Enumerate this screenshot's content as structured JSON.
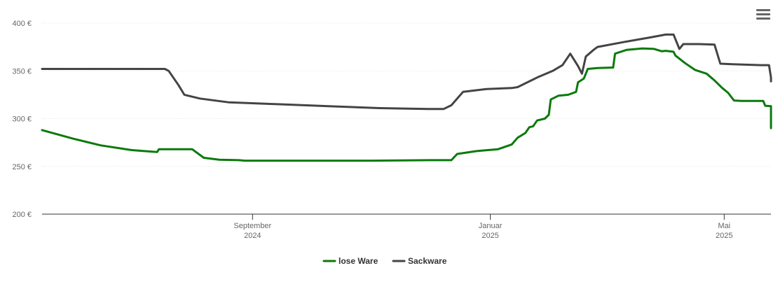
{
  "menu": {
    "icon": "hamburger-menu-icon"
  },
  "chart_data": {
    "type": "line",
    "title": "",
    "xlabel": "",
    "ylabel": "",
    "ylim": [
      200,
      400
    ],
    "yticks": [
      {
        "value": 200,
        "label": "200 €"
      },
      {
        "value": 250,
        "label": "250 €"
      },
      {
        "value": 300,
        "label": "300 €"
      },
      {
        "value": 350,
        "label": "350 €"
      },
      {
        "value": 400,
        "label": "400 €"
      }
    ],
    "xlim": [
      "2024-05-16",
      "2025-05-25"
    ],
    "xticks": [
      {
        "date": "2024-09-01",
        "month": "September",
        "year": "2024"
      },
      {
        "date": "2025-01-01",
        "month": "Januar",
        "year": "2025"
      },
      {
        "date": "2025-05-01",
        "month": "Mai",
        "year": "2025"
      }
    ],
    "grid": true,
    "legend": "bottom-center",
    "series": [
      {
        "name": "lose Ware",
        "color": "#0a7a0a",
        "points": [
          [
            "2024-05-16",
            288
          ],
          [
            "2024-06-01",
            279
          ],
          [
            "2024-06-15",
            272
          ],
          [
            "2024-07-01",
            267
          ],
          [
            "2024-07-14",
            265
          ],
          [
            "2024-07-15",
            268
          ],
          [
            "2024-08-01",
            268
          ],
          [
            "2024-08-07",
            259
          ],
          [
            "2024-08-15",
            257
          ],
          [
            "2024-08-25",
            256.5
          ],
          [
            "2024-08-28",
            256
          ],
          [
            "2024-10-01",
            256
          ],
          [
            "2024-11-01",
            256
          ],
          [
            "2024-12-01",
            256.5
          ],
          [
            "2024-12-12",
            256.5
          ],
          [
            "2024-12-15",
            263
          ],
          [
            "2024-12-25",
            266
          ],
          [
            "2025-01-05",
            268
          ],
          [
            "2025-01-12",
            273
          ],
          [
            "2025-01-15",
            280
          ],
          [
            "2025-01-19",
            285
          ],
          [
            "2025-01-21",
            291
          ],
          [
            "2025-01-23",
            292
          ],
          [
            "2025-01-25",
            298
          ],
          [
            "2025-01-29",
            300
          ],
          [
            "2025-01-31",
            304
          ],
          [
            "2025-02-01",
            320
          ],
          [
            "2025-02-05",
            324
          ],
          [
            "2025-02-10",
            325
          ],
          [
            "2025-02-14",
            328
          ],
          [
            "2025-02-15",
            338
          ],
          [
            "2025-02-18",
            342
          ],
          [
            "2025-02-20",
            352
          ],
          [
            "2025-02-25",
            353
          ],
          [
            "2025-03-05",
            353.5
          ],
          [
            "2025-03-06",
            368
          ],
          [
            "2025-03-12",
            372
          ],
          [
            "2025-03-20",
            373.5
          ],
          [
            "2025-03-26",
            373
          ],
          [
            "2025-03-30",
            370.5
          ],
          [
            "2025-04-01",
            371
          ],
          [
            "2025-04-05",
            370
          ],
          [
            "2025-04-06",
            366
          ],
          [
            "2025-04-11",
            358
          ],
          [
            "2025-04-16",
            351
          ],
          [
            "2025-04-22",
            347
          ],
          [
            "2025-04-26",
            340
          ],
          [
            "2025-04-30",
            332
          ],
          [
            "2025-05-03",
            327
          ],
          [
            "2025-05-06",
            319
          ],
          [
            "2025-05-10",
            318.5
          ],
          [
            "2025-05-21",
            318.5
          ],
          [
            "2025-05-22",
            313.5
          ],
          [
            "2025-05-29",
            313
          ],
          [
            "2025-06-01",
            294
          ],
          [
            "2025-06-15",
            290
          ]
        ]
      },
      {
        "name": "Sackware",
        "color": "#444444",
        "points": [
          [
            "2024-05-16",
            352
          ],
          [
            "2024-06-15",
            352
          ],
          [
            "2024-07-18",
            352
          ],
          [
            "2024-07-20",
            350
          ],
          [
            "2024-07-25",
            335
          ],
          [
            "2024-07-28",
            325
          ],
          [
            "2024-08-05",
            321
          ],
          [
            "2024-08-20",
            317
          ],
          [
            "2024-09-15",
            315
          ],
          [
            "2024-10-10",
            313
          ],
          [
            "2024-11-05",
            311
          ],
          [
            "2024-11-30",
            310
          ],
          [
            "2024-12-08",
            310
          ],
          [
            "2024-12-12",
            314
          ],
          [
            "2024-12-18",
            328
          ],
          [
            "2024-12-30",
            331
          ],
          [
            "2025-01-12",
            332
          ],
          [
            "2025-01-15",
            333
          ],
          [
            "2025-01-25",
            343
          ],
          [
            "2025-02-02",
            350
          ],
          [
            "2025-02-07",
            356
          ],
          [
            "2025-02-11",
            368
          ],
          [
            "2025-02-15",
            355
          ],
          [
            "2025-02-17",
            347
          ],
          [
            "2025-02-19",
            365
          ],
          [
            "2025-02-23",
            372
          ],
          [
            "2025-02-25",
            375
          ],
          [
            "2025-03-10",
            380
          ],
          [
            "2025-03-24",
            385
          ],
          [
            "2025-04-01",
            388
          ],
          [
            "2025-04-05",
            388
          ],
          [
            "2025-04-08",
            373
          ],
          [
            "2025-04-10",
            378
          ],
          [
            "2025-04-18",
            378
          ],
          [
            "2025-04-26",
            377.5
          ],
          [
            "2025-04-29",
            357.5
          ],
          [
            "2025-05-05",
            357
          ],
          [
            "2025-05-20",
            356
          ],
          [
            "2025-05-24",
            356
          ],
          [
            "2025-05-26",
            343
          ],
          [
            "2025-06-01",
            341
          ],
          [
            "2025-06-15",
            339
          ]
        ]
      }
    ]
  }
}
